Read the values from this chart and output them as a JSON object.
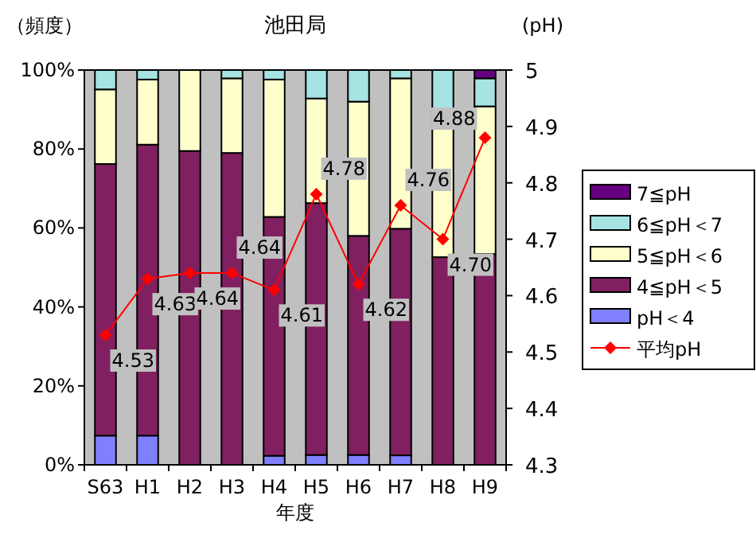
{
  "chart_data": {
    "type": "bar",
    "stacked": true,
    "title": "池田局",
    "ylabel": "（頻度）",
    "y2label": "(pH)",
    "xlabel": "年度",
    "categories": [
      "S63",
      "H1",
      "H2",
      "H3",
      "H4",
      "H5",
      "H6",
      "H7",
      "H8",
      "H9"
    ],
    "series": [
      {
        "name": "pH＜4",
        "color": "#8080ff",
        "values": [
          7.4,
          7.4,
          0,
          0,
          2.3,
          2.5,
          2.5,
          2.4,
          0,
          0
        ]
      },
      {
        "name": "4≦pH＜5",
        "color": "#802060",
        "values": [
          68.8,
          73.7,
          79.5,
          79,
          60.5,
          63.8,
          55.5,
          57.4,
          52.6,
          53.4
        ]
      },
      {
        "name": "5≦pH＜6",
        "color": "#ffffcc",
        "values": [
          18.9,
          16.5,
          20.5,
          18.9,
          34.8,
          26.5,
          34,
          38.1,
          37.3,
          37.4
        ]
      },
      {
        "name": "6≦pH＜7",
        "color": "#a6e3e3",
        "values": [
          4.9,
          2.4,
          0,
          2.1,
          2.4,
          7.2,
          8,
          2.1,
          10.1,
          7.1
        ]
      },
      {
        "name": "7≦pH",
        "color": "#660080",
        "values": [
          0,
          0,
          0,
          0,
          0,
          0,
          0,
          0,
          0,
          2.1
        ]
      },
      {
        "name": "平均pH",
        "type": "line",
        "axis": "y2",
        "color": "#ff0000",
        "marker": "diamond",
        "values": [
          4.53,
          4.63,
          4.64,
          4.64,
          4.61,
          4.78,
          4.62,
          4.76,
          4.7,
          4.88
        ],
        "value_labels": [
          "4.53",
          "4.63",
          "4.64",
          "4.64",
          "4.61",
          "4.78",
          "4.62",
          "4.76",
          "4.70",
          "4.88"
        ]
      }
    ],
    "ylim": [
      0,
      100
    ],
    "yticks": [
      {
        "value": 0,
        "label": "0%"
      },
      {
        "value": 20,
        "label": "20%"
      },
      {
        "value": 40,
        "label": "40%"
      },
      {
        "value": 60,
        "label": "60%"
      },
      {
        "value": 80,
        "label": "80%"
      },
      {
        "value": 100,
        "label": "100%"
      }
    ],
    "y2lim": [
      4.3,
      5
    ],
    "y2ticks": [
      4.3,
      4.4,
      4.5,
      4.6,
      4.7,
      4.8,
      4.9,
      5
    ],
    "grid": false,
    "legend": "right"
  }
}
